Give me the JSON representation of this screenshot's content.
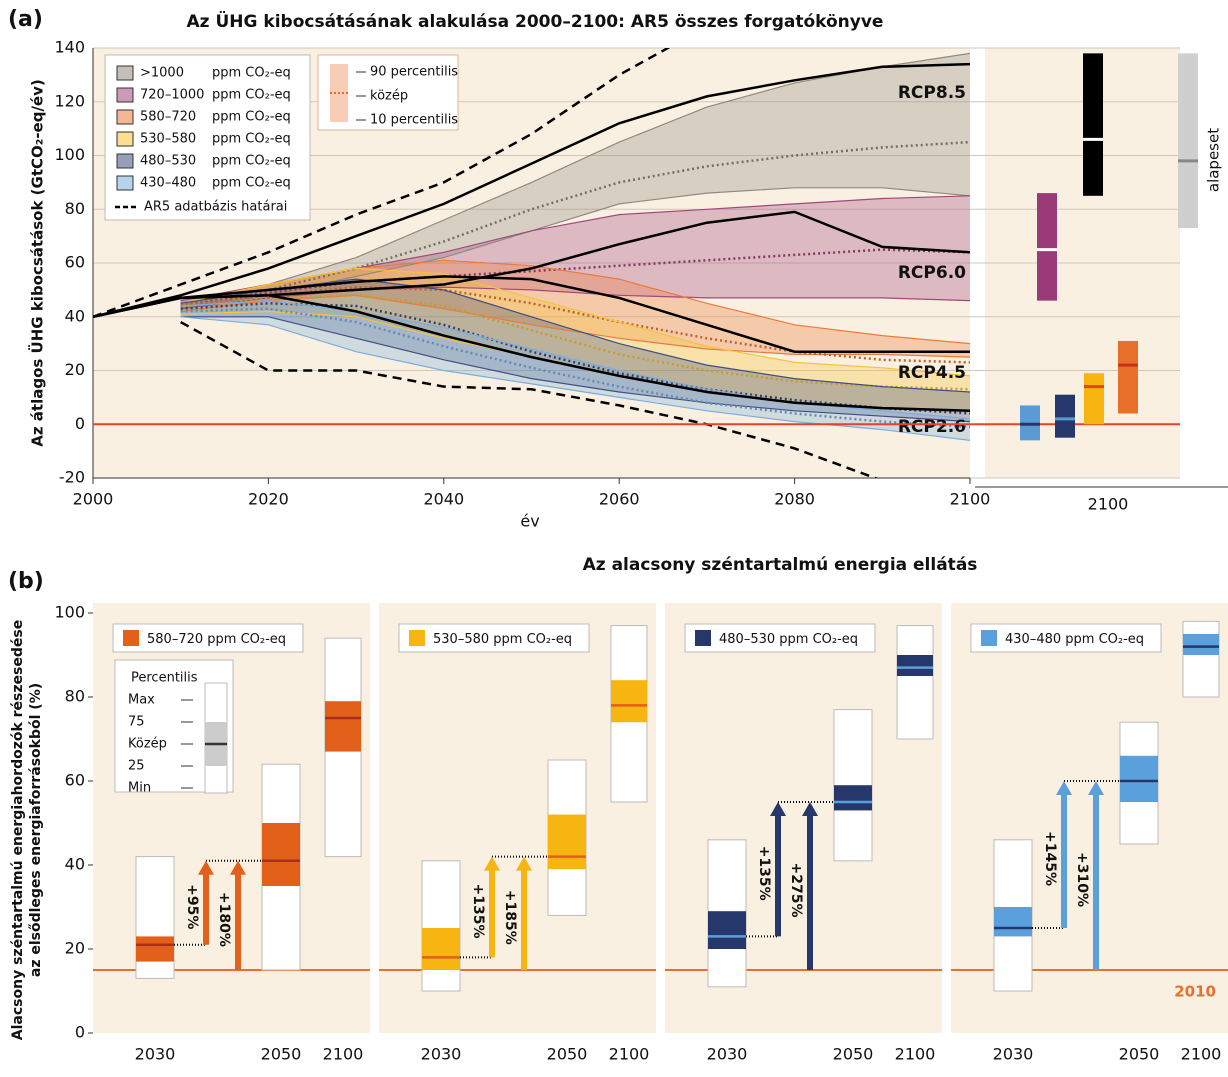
{
  "chart_data": [
    {
      "type": "band-line",
      "panel_label": "(a)",
      "title": "Az ÜHG kibocsátásának alakulása 2000–2100: AR5 összes forgatókönyve",
      "ylabel": "Az átlagos ÜHG kibocsátások (GtCO₂-eq/év)",
      "xlabel": "év",
      "x": [
        2000,
        2010,
        2020,
        2030,
        2040,
        2050,
        2060,
        2070,
        2080,
        2090,
        2100
      ],
      "xlim": [
        2000,
        2100
      ],
      "xticks": [
        2000,
        2020,
        2040,
        2060,
        2080,
        2100
      ],
      "ylim": [
        -20,
        140
      ],
      "yticks": [
        -20,
        0,
        20,
        40,
        60,
        80,
        100,
        120,
        140
      ],
      "legend_unit": "ppm CO₂-eq",
      "series": [
        {
          "name": ">1000",
          "color": "#8f8a83",
          "lower": [
            null,
            43,
            48,
            55,
            62,
            72,
            82,
            86,
            88,
            88,
            85
          ],
          "median": [
            null,
            45,
            50,
            58,
            68,
            80,
            90,
            96,
            100,
            103,
            105
          ],
          "upper": [
            null,
            46,
            52,
            62,
            76,
            90,
            105,
            118,
            127,
            133,
            138
          ]
        },
        {
          "name": "720–1000",
          "color": "#a2477e",
          "lower": [
            null,
            43,
            47,
            50,
            51,
            50,
            48,
            47,
            47,
            47,
            46
          ],
          "median": [
            null,
            44,
            49,
            53,
            55,
            57,
            59,
            61,
            63,
            65,
            64
          ],
          "upper": [
            null,
            46,
            52,
            58,
            64,
            72,
            78,
            80,
            82,
            84,
            85
          ]
        },
        {
          "name": "580–720",
          "color": "#ec7a3a",
          "lower": [
            null,
            42,
            46,
            48,
            43,
            37,
            32,
            28,
            26,
            26,
            25
          ],
          "median": [
            null,
            44,
            48,
            51,
            50,
            45,
            38,
            32,
            27,
            24,
            23
          ],
          "upper": [
            null,
            45,
            52,
            58,
            61,
            59,
            54,
            45,
            37,
            33,
            30
          ]
        },
        {
          "name": "530–580",
          "color": "#f7c338",
          "lower": [
            null,
            41,
            42,
            40,
            32,
            25,
            18,
            12,
            8,
            6,
            5
          ],
          "median": [
            null,
            43,
            47,
            48,
            44,
            35,
            26,
            20,
            16,
            14,
            13
          ],
          "upper": [
            null,
            45,
            52,
            58,
            56,
            47,
            38,
            29,
            23,
            21,
            18
          ]
        },
        {
          "name": "480–530",
          "color": "#3f4f80",
          "lower": [
            null,
            40,
            40,
            32,
            24,
            17,
            12,
            8,
            5,
            3,
            1
          ],
          "median": [
            null,
            43,
            45,
            44,
            37,
            27,
            19,
            13,
            9,
            6,
            4
          ],
          "upper": [
            null,
            45,
            50,
            54,
            50,
            40,
            30,
            22,
            17,
            14,
            12
          ]
        },
        {
          "name": "430–480",
          "color": "#7aaede",
          "lower": [
            null,
            40,
            37,
            27,
            20,
            15,
            10,
            5,
            1,
            -2,
            -6
          ],
          "median": [
            null,
            42,
            43,
            38,
            29,
            21,
            14,
            8,
            4,
            1,
            -1
          ],
          "upper": [
            null,
            44,
            46,
            42,
            36,
            28,
            20,
            13,
            8,
            5,
            2
          ]
        }
      ],
      "percentile_legend": [
        "90 percentilis",
        "közép",
        "10 percentilis"
      ],
      "lines": [
        {
          "name": "RCP8.5",
          "values": [
            40,
            48,
            58,
            70,
            82,
            97,
            112,
            122,
            128,
            133,
            134
          ]
        },
        {
          "name": "RCP6.0",
          "values": [
            40,
            47,
            48,
            50,
            52,
            58,
            67,
            75,
            79,
            66,
            64
          ]
        },
        {
          "name": "RCP4.5",
          "values": [
            40,
            47,
            50,
            53,
            55,
            54,
            47,
            37,
            27,
            27,
            27
          ]
        },
        {
          "name": "RCP2.6",
          "values": [
            40,
            47,
            48,
            42,
            33,
            25,
            18,
            12,
            8,
            6,
            5
          ]
        }
      ],
      "bounds": {
        "name": "AR5 adatbázis határai",
        "upper": [
          40,
          52,
          64,
          78,
          90,
          108,
          130,
          148,
          null,
          null,
          null
        ],
        "lower": [
          null,
          38,
          20,
          20,
          14,
          13,
          7,
          0,
          -9,
          -21,
          null
        ]
      }
    },
    {
      "type": "range-box",
      "xlabel": "2100",
      "boxes": [
        {
          "color": "#000000",
          "median_color": "#ffffff",
          "low": 85,
          "median": 106,
          "high": 138
        },
        {
          "color": "#9b3a78",
          "median_color": "#ffffff",
          "low": 46,
          "median": 65,
          "high": 86
        },
        {
          "color": "#e8702a",
          "median_color": "#c8301e",
          "low": 4,
          "median": 22,
          "high": 31
        },
        {
          "color": "#f6b511",
          "median_color": "#d84a1e",
          "low": 0,
          "median": 14,
          "high": 19
        },
        {
          "color": "#26376c",
          "median_color": "#5a9bd5",
          "low": -5,
          "median": 2,
          "high": 11
        },
        {
          "color": "#5a9bd5",
          "median_color": "#26376c",
          "low": -6,
          "median": 0,
          "high": 7
        }
      ],
      "baseline": {
        "name": "alapeset",
        "color": "#cfcfcf",
        "median_color": "#888888",
        "low": 73,
        "median": 98,
        "high": 138
      }
    },
    {
      "type": "box",
      "panel_label": "(b)",
      "title": "Az alacsony széntartalmú energia ellátás",
      "ylabel": [
        "Alacsony széntartalmú energiahordozók részesedése",
        "az elsődleges energiaforrásokból (%)"
      ],
      "ylim": [
        0,
        100
      ],
      "yticks": [
        0,
        20,
        40,
        60,
        80,
        100
      ],
      "categories": [
        "2030",
        "2050",
        "2100"
      ],
      "ref": {
        "value": 15,
        "label": "2010",
        "color": "#e8702a"
      },
      "box_legend": {
        "title": "Percentilis",
        "labels": [
          "Max",
          "75",
          "Közép",
          "25",
          "Min"
        ]
      },
      "panels": [
        {
          "name": "580–720",
          "color": "#e2601a",
          "median_color": "#a8301a",
          "boxes": [
            {
              "min": 13,
              "p25": 17,
              "median": 21,
              "p75": 23,
              "max": 42
            },
            {
              "min": 15,
              "p25": 35,
              "median": 41,
              "p75": 50,
              "max": 64
            },
            {
              "min": 42,
              "p25": 67,
              "median": 75,
              "p75": 79,
              "max": 94
            }
          ],
          "arrow_labels": [
            "+95%",
            "+180%"
          ]
        },
        {
          "name": "530–580",
          "color": "#f6b511",
          "median_color": "#e2601a",
          "boxes": [
            {
              "min": 10,
              "p25": 15,
              "median": 18,
              "p75": 25,
              "max": 41
            },
            {
              "min": 28,
              "p25": 39,
              "median": 42,
              "p75": 52,
              "max": 65
            },
            {
              "min": 55,
              "p25": 74,
              "median": 78,
              "p75": 84,
              "max": 97
            }
          ],
          "arrow_labels": [
            "+135%",
            "+185%"
          ]
        },
        {
          "name": "480–530",
          "color": "#26376c",
          "median_color": "#5aa0dc",
          "boxes": [
            {
              "min": 11,
              "p25": 20,
              "median": 23,
              "p75": 29,
              "max": 46
            },
            {
              "min": 41,
              "p25": 53,
              "median": 55,
              "p75": 59,
              "max": 77
            },
            {
              "min": 70,
              "p25": 85,
              "median": 87,
              "p75": 90,
              "max": 97
            }
          ],
          "arrow_labels": [
            "+135%",
            "+275%"
          ]
        },
        {
          "name": "430–480",
          "color": "#5aa0dc",
          "median_color": "#26376c",
          "boxes": [
            {
              "min": 10,
              "p25": 23,
              "median": 25,
              "p75": 30,
              "max": 46
            },
            {
              "min": 45,
              "p25": 55,
              "median": 60,
              "p75": 66,
              "max": 74
            },
            {
              "min": 80,
              "p25": 90,
              "median": 92,
              "p75": 95,
              "max": 98
            }
          ],
          "arrow_labels": [
            "+145%",
            "+310%"
          ]
        }
      ]
    }
  ]
}
